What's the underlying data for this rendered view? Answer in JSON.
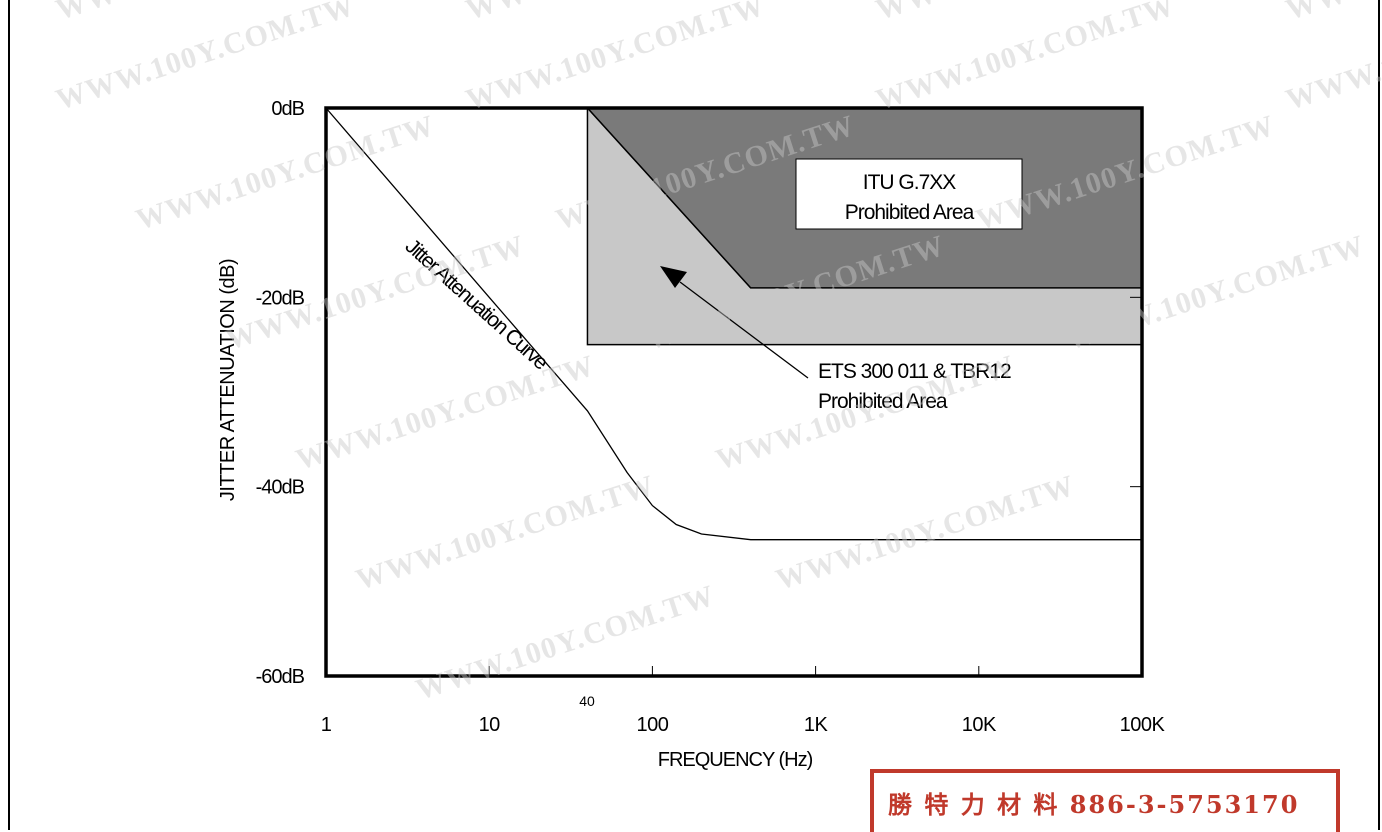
{
  "chart_data": {
    "type": "line",
    "title": "",
    "xlabel": "FREQUENCY (Hz)",
    "ylabel": "JITTER ATTENUATION (dB)",
    "x_scale": "log",
    "xlim": [
      1,
      100000
    ],
    "ylim": [
      -60,
      0
    ],
    "x_ticks": [
      "1",
      "10",
      "100",
      "1K",
      "10K",
      "100K"
    ],
    "y_ticks": [
      "0dB",
      "-20dB",
      "-40dB",
      "-60dB"
    ],
    "extra_x_tick_label": "40",
    "series": [
      {
        "name": "Jitter Attenuation Curve",
        "x": [
          1,
          10,
          40,
          70,
          100,
          140,
          200,
          400,
          1000,
          10000,
          100000
        ],
        "y": [
          0,
          -20,
          -32,
          -38.5,
          -42,
          -44,
          -45,
          -45.6,
          -45.6,
          -45.6,
          -45.6
        ]
      }
    ],
    "regions": [
      {
        "label_lines": [
          "ETS 300 011 & TBR12",
          "Prohibited Area"
        ],
        "color": "#c8c8c8",
        "boundary": [
          [
            40,
            0
          ],
          [
            100000,
            0
          ],
          [
            100000,
            -25
          ],
          [
            40,
            -25
          ]
        ]
      },
      {
        "label_lines": [
          "ITU G.7XX",
          "Prohibited Area"
        ],
        "color": "#7a7a7a",
        "boundary": [
          [
            40,
            0
          ],
          [
            100000,
            0
          ],
          [
            100000,
            -19
          ],
          [
            400,
            -19
          ]
        ]
      }
    ]
  },
  "watermark": "WWW.100Y.COM.TW",
  "stamp": {
    "text": "勝 特 力 材 料 886-3-5753170",
    "color": "#c0392b"
  }
}
